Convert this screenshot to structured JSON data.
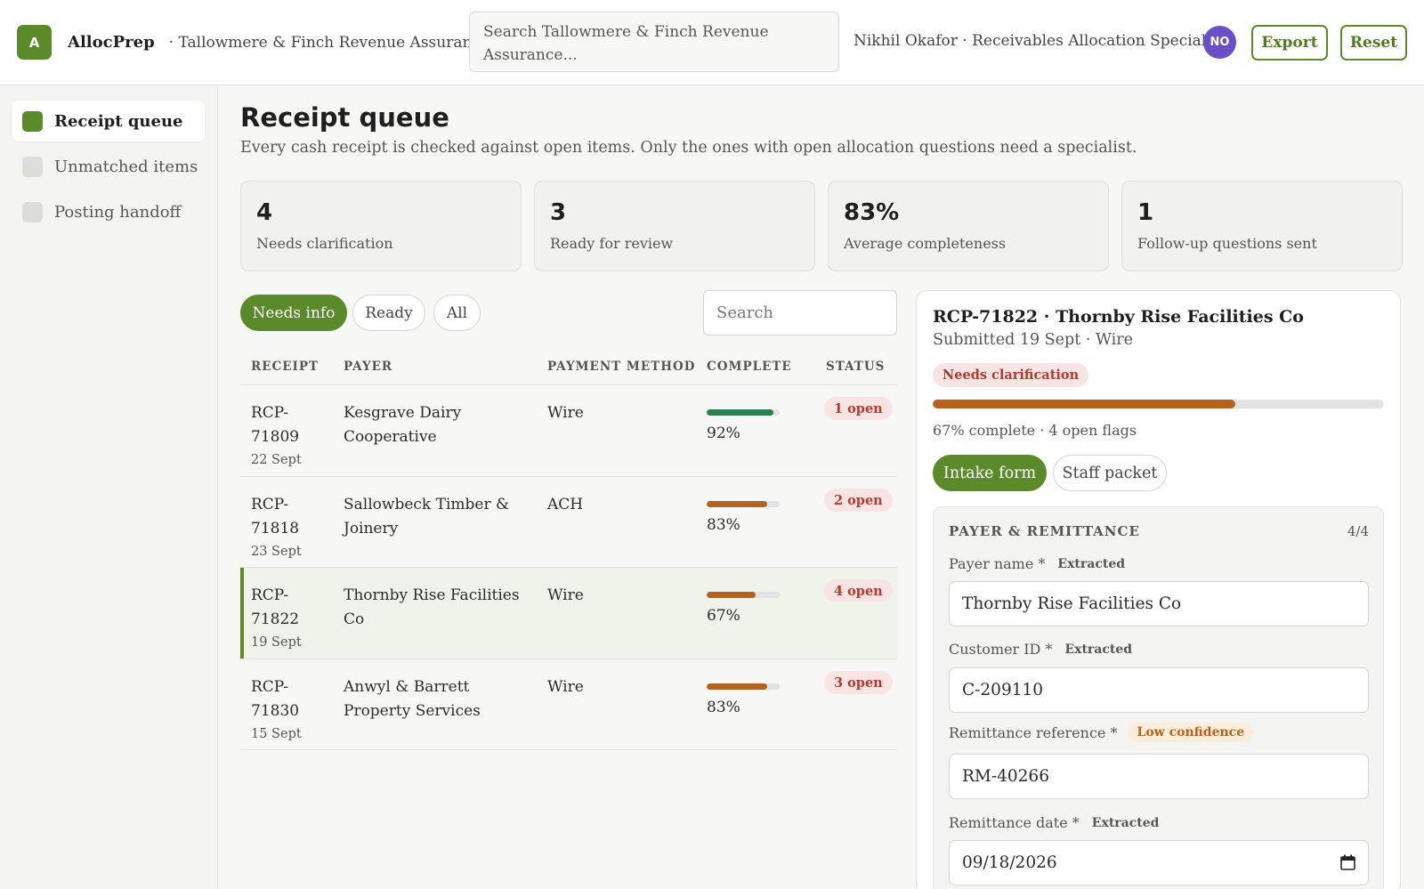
{
  "app": {
    "logo_letter": "A",
    "name": "AllocPrep",
    "org": "· Tallowmere & Finch Revenue Assurance",
    "search_placeholder": "Search Tallowmere & Finch Revenue Assurance...",
    "user": "Nikhil Okafor · Receivables Allocation Specialist",
    "avatar_initials": "NO",
    "export_label": "Export",
    "reset_label": "Reset",
    "accent": "#5b8a2a"
  },
  "sidebar": {
    "items": [
      {
        "label": "Receipt queue",
        "active": true
      },
      {
        "label": "Unmatched items",
        "active": false
      },
      {
        "label": "Posting handoff",
        "active": false
      }
    ]
  },
  "main": {
    "title": "Receipt queue",
    "subtitle": "Every cash receipt is checked against open items. Only the ones with open allocation questions need a specialist.",
    "stats": [
      {
        "value": "4",
        "label": "Needs clarification"
      },
      {
        "value": "3",
        "label": "Ready for review"
      },
      {
        "value": "83%",
        "label": "Average completeness"
      },
      {
        "value": "1",
        "label": "Follow-up questions sent"
      }
    ],
    "filters": [
      "Needs info",
      "Ready",
      "All"
    ],
    "active_filter": "Needs info",
    "list_search_placeholder": "Search",
    "columns": [
      "RECEIPT",
      "PAYER",
      "PAYMENT METHOD",
      "COMPLETE",
      "STATUS"
    ],
    "rows": [
      {
        "id_line1": "RCP-",
        "id_line2": "71809",
        "date": "22 Sept",
        "payer": "Kesgrave Dairy Cooperative",
        "method": "Wire",
        "complete": 0.92,
        "complete_label": "92%",
        "bar_color": "#2e7d4f",
        "status": "1 open",
        "selected": false
      },
      {
        "id_line1": "RCP-",
        "id_line2": "71818",
        "date": "23 Sept",
        "payer": "Sallowbeck Timber & Joinery",
        "method": "ACH",
        "complete": 0.83,
        "complete_label": "83%",
        "bar_color": "#b5621f",
        "status": "2 open",
        "selected": false
      },
      {
        "id_line1": "RCP-",
        "id_line2": "71822",
        "date": "19 Sept",
        "payer": "Thornby Rise Facilities Co",
        "method": "Wire",
        "complete": 0.67,
        "complete_label": "67%",
        "bar_color": "#b5621f",
        "status": "4 open",
        "selected": true
      },
      {
        "id_line1": "RCP-",
        "id_line2": "71830",
        "date": "15 Sept",
        "payer": "Anwyl & Barrett Property Services",
        "method": "Wire",
        "complete": 0.83,
        "complete_label": "83%",
        "bar_color": "#b5621f",
        "status": "3 open",
        "selected": false
      }
    ]
  },
  "detail": {
    "title": "RCP-71822 · Thornby Rise Facilities Co",
    "subtitle": "Submitted 19 Sept · Wire",
    "status_badge": "Needs clarification",
    "complete": 0.67,
    "progress_text": "67% complete · 4 open flags",
    "tabs": [
      "Intake form",
      "Staff packet"
    ],
    "active_tab": "Intake form",
    "section": {
      "title": "PAYER & REMITTANCE",
      "count": "4/4",
      "fields": [
        {
          "label": "Payer name *",
          "tag": "Extracted",
          "tag_type": "extracted",
          "value": "Thornby Rise Facilities Co"
        },
        {
          "label": "Customer ID *",
          "tag": "Extracted",
          "tag_type": "extracted",
          "value": "C-209110"
        },
        {
          "label": "Remittance reference *",
          "tag": "Low confidence",
          "tag_type": "low",
          "value": "RM-40266"
        },
        {
          "label": "Remittance date *",
          "tag": "Extracted",
          "tag_type": "extracted",
          "value": "09/18/2026"
        }
      ]
    }
  }
}
